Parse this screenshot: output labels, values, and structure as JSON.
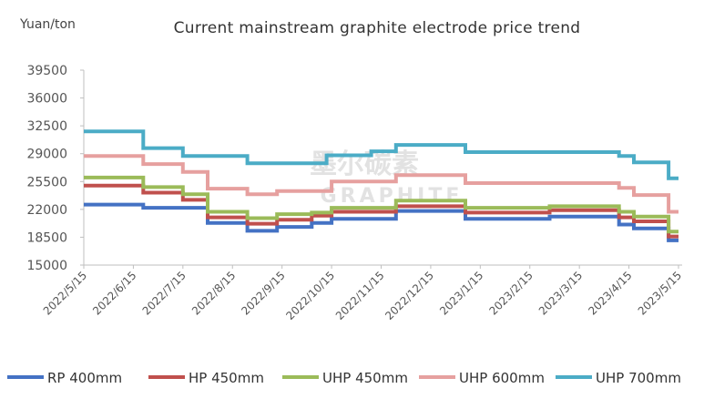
{
  "chart_data": {
    "type": "line",
    "title": "Current mainstream graphite electrode price trend",
    "ylabel": "Yuan/ton",
    "xlabel": "",
    "ylim": [
      15000,
      39500
    ],
    "yticks": [
      15000,
      18500,
      22000,
      25500,
      29000,
      32500,
      36000,
      39500
    ],
    "ytick_labels": [
      "15000",
      "18500",
      "22000",
      "25500",
      "29000",
      "32500",
      "36000",
      "39500"
    ],
    "categories": [
      "2022/5/15",
      "2022/6/15",
      "2022/7/15",
      "2022/8/15",
      "2022/9/15",
      "2022/10/15",
      "2022/11/15",
      "2022/12/15",
      "2023/1/15",
      "2023/2/15",
      "2023/3/15",
      "2023/4/15",
      "2023/5/15"
    ],
    "grid": false,
    "legend_position": "bottom",
    "watermark_text": [
      "墨尔碳素",
      "GRAPHITE"
    ],
    "series": [
      {
        "name": "RP 400mm",
        "color": "#4472c4",
        "points": [
          [
            0,
            22600
          ],
          [
            1.2,
            22600
          ],
          [
            1.2,
            22200
          ],
          [
            2.5,
            22200
          ],
          [
            2.5,
            20300
          ],
          [
            3.3,
            20300
          ],
          [
            3.3,
            19300
          ],
          [
            3.9,
            19300
          ],
          [
            3.9,
            19800
          ],
          [
            4.6,
            19800
          ],
          [
            4.6,
            20300
          ],
          [
            5.0,
            20300
          ],
          [
            5.0,
            20800
          ],
          [
            6.3,
            20800
          ],
          [
            6.3,
            21800
          ],
          [
            7.7,
            21800
          ],
          [
            7.7,
            20800
          ],
          [
            9.4,
            20800
          ],
          [
            9.4,
            21100
          ],
          [
            10.8,
            21100
          ],
          [
            10.8,
            20100
          ],
          [
            11.1,
            20100
          ],
          [
            11.1,
            19600
          ],
          [
            11.8,
            19600
          ],
          [
            11.8,
            18100
          ],
          [
            12.0,
            18100
          ]
        ]
      },
      {
        "name": "HP 450mm",
        "color": "#c0504d",
        "points": [
          [
            0,
            25000
          ],
          [
            1.2,
            25000
          ],
          [
            1.2,
            24100
          ],
          [
            2.0,
            24100
          ],
          [
            2.0,
            23200
          ],
          [
            2.5,
            23200
          ],
          [
            2.5,
            21000
          ],
          [
            3.3,
            21000
          ],
          [
            3.3,
            20200
          ],
          [
            3.9,
            20200
          ],
          [
            3.9,
            20700
          ],
          [
            4.6,
            20700
          ],
          [
            4.6,
            21200
          ],
          [
            5.0,
            21200
          ],
          [
            5.0,
            21700
          ],
          [
            6.3,
            21700
          ],
          [
            6.3,
            22400
          ],
          [
            7.7,
            22400
          ],
          [
            7.7,
            21600
          ],
          [
            9.4,
            21600
          ],
          [
            9.4,
            21900
          ],
          [
            10.8,
            21900
          ],
          [
            10.8,
            21000
          ],
          [
            11.1,
            21000
          ],
          [
            11.1,
            20500
          ],
          [
            11.8,
            20500
          ],
          [
            11.8,
            18600
          ],
          [
            12.0,
            18600
          ]
        ]
      },
      {
        "name": "UHP 450mm",
        "color": "#9bbb59",
        "points": [
          [
            0,
            26000
          ],
          [
            1.2,
            26000
          ],
          [
            1.2,
            24800
          ],
          [
            2.0,
            24800
          ],
          [
            2.0,
            23900
          ],
          [
            2.5,
            23900
          ],
          [
            2.5,
            21700
          ],
          [
            3.3,
            21700
          ],
          [
            3.3,
            20900
          ],
          [
            3.9,
            20900
          ],
          [
            3.9,
            21400
          ],
          [
            4.6,
            21400
          ],
          [
            4.6,
            21600
          ],
          [
            5.0,
            21600
          ],
          [
            5.0,
            22200
          ],
          [
            6.3,
            22200
          ],
          [
            6.3,
            23100
          ],
          [
            7.7,
            23100
          ],
          [
            7.7,
            22200
          ],
          [
            9.4,
            22200
          ],
          [
            9.4,
            22400
          ],
          [
            10.8,
            22400
          ],
          [
            10.8,
            21700
          ],
          [
            11.1,
            21700
          ],
          [
            11.1,
            21100
          ],
          [
            11.8,
            21100
          ],
          [
            11.8,
            19200
          ],
          [
            12.0,
            19200
          ]
        ]
      },
      {
        "name": "UHP 600mm",
        "color": "#e6a09f",
        "points": [
          [
            0,
            28700
          ],
          [
            1.2,
            28700
          ],
          [
            1.2,
            27700
          ],
          [
            2.0,
            27700
          ],
          [
            2.0,
            26700
          ],
          [
            2.5,
            26700
          ],
          [
            2.5,
            24600
          ],
          [
            3.3,
            24600
          ],
          [
            3.3,
            23900
          ],
          [
            3.9,
            23900
          ],
          [
            3.9,
            24300
          ],
          [
            5.0,
            24300
          ],
          [
            5.0,
            25500
          ],
          [
            6.3,
            25500
          ],
          [
            6.3,
            26300
          ],
          [
            7.7,
            26300
          ],
          [
            7.7,
            25300
          ],
          [
            10.8,
            25300
          ],
          [
            10.8,
            24700
          ],
          [
            11.1,
            24700
          ],
          [
            11.1,
            23800
          ],
          [
            11.8,
            23800
          ],
          [
            11.8,
            21700
          ],
          [
            12.0,
            21700
          ]
        ]
      },
      {
        "name": "UHP 700mm",
        "color": "#4bacc6",
        "points": [
          [
            0,
            31800
          ],
          [
            1.2,
            31800
          ],
          [
            1.2,
            29700
          ],
          [
            2.0,
            29700
          ],
          [
            2.0,
            28700
          ],
          [
            3.3,
            28700
          ],
          [
            3.3,
            27800
          ],
          [
            4.9,
            27800
          ],
          [
            4.9,
            28800
          ],
          [
            5.8,
            28800
          ],
          [
            5.8,
            29300
          ],
          [
            6.3,
            29300
          ],
          [
            6.3,
            30100
          ],
          [
            7.7,
            30100
          ],
          [
            7.7,
            29200
          ],
          [
            10.8,
            29200
          ],
          [
            10.8,
            28700
          ],
          [
            11.1,
            28700
          ],
          [
            11.1,
            27900
          ],
          [
            11.8,
            27900
          ],
          [
            11.8,
            25900
          ],
          [
            12.0,
            25900
          ]
        ]
      }
    ]
  }
}
